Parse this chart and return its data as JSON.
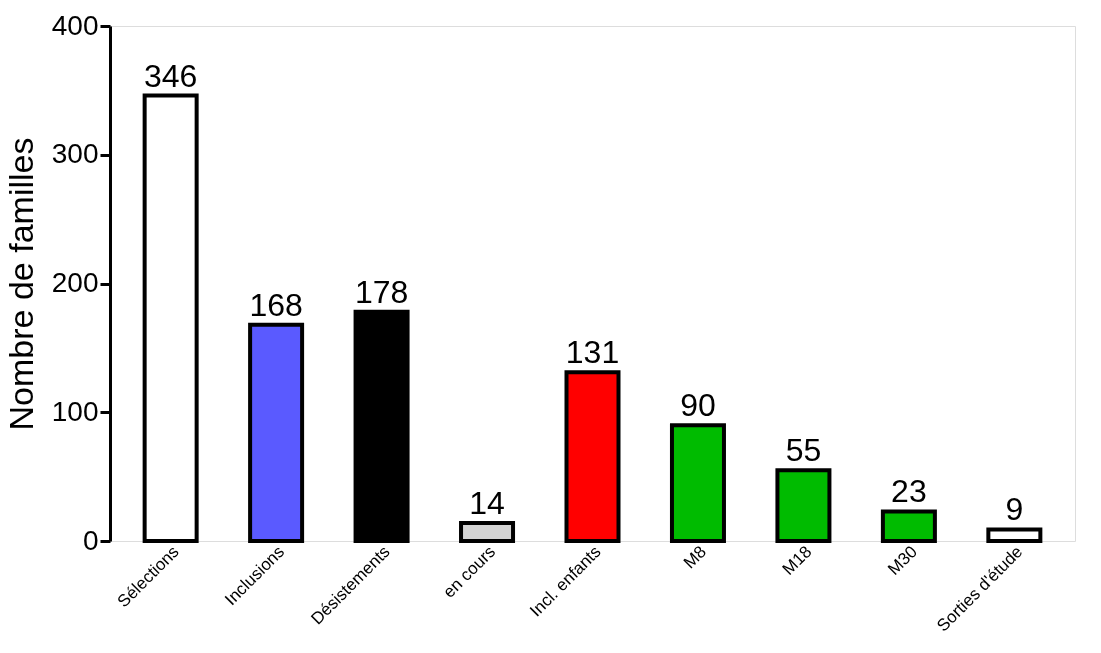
{
  "chart_data": {
    "type": "bar",
    "ylabel": "Nombre de familles",
    "categories": [
      "Sélections",
      "Inclusions",
      "Désistements",
      "en cours",
      "Incl. enfants",
      "M8",
      "M18",
      "M30",
      "Sorties d'étude"
    ],
    "values": [
      346,
      168,
      178,
      14,
      131,
      90,
      55,
      23,
      9
    ],
    "colors": [
      "#ffffff",
      "#5a5aff",
      "#000000",
      "#d3d3d3",
      "#ff0000",
      "#00bb00",
      "#00bb00",
      "#00bb00",
      "#ffffff"
    ],
    "ylim": [
      0,
      400
    ],
    "yticks": [
      0,
      100,
      200,
      300,
      400
    ],
    "grid": false,
    "data_labels": true
  }
}
